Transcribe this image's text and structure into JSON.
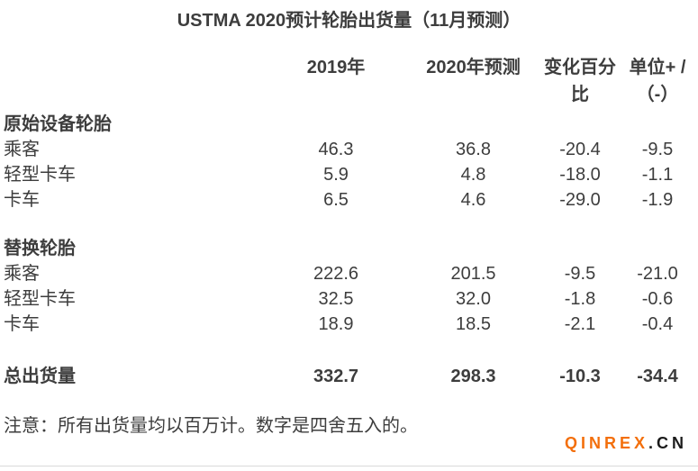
{
  "chart_data": {
    "type": "table",
    "title": "USTMA 2020预计轮胎出货量（11月预测）",
    "columns": [
      "",
      "2019年",
      "2020年预测",
      "变化百分比",
      "单位+/（-）"
    ],
    "header": {
      "y2019": {
        "line1": "2019年",
        "line2": ""
      },
      "y2020": {
        "line1": "2020年预测",
        "line2": ""
      },
      "pct": {
        "line1": "变化百分",
        "line2": "比"
      },
      "unit": {
        "line1": "单位+ /",
        "line2": "（-）"
      }
    },
    "sections": [
      {
        "name": "原始设备轮胎",
        "rows": [
          {
            "label": "乘客",
            "y2019": "46.3",
            "y2020": "36.8",
            "pct": "-20.4",
            "unit": "-9.5"
          },
          {
            "label": "轻型卡车",
            "y2019": "5.9",
            "y2020": "4.8",
            "pct": "-18.0",
            "unit": "-1.1"
          },
          {
            "label": "卡车",
            "y2019": "6.5",
            "y2020": "4.6",
            "pct": "-29.0",
            "unit": "-1.9"
          }
        ]
      },
      {
        "name": "替换轮胎",
        "rows": [
          {
            "label": "乘客",
            "y2019": "222.6",
            "y2020": "201.5",
            "pct": "-9.5",
            "unit": "-21.0"
          },
          {
            "label": "轻型卡车",
            "y2019": "32.5",
            "y2020": "32.0",
            "pct": "-1.8",
            "unit": "-0.6"
          },
          {
            "label": "卡车",
            "y2019": "18.9",
            "y2020": "18.5",
            "pct": "-2.1",
            "unit": "-0.4"
          }
        ]
      }
    ],
    "total": {
      "label": "总出货量",
      "y2019": "332.7",
      "y2020": "298.3",
      "pct": "-10.3",
      "unit": "-34.4"
    },
    "note": "注意：所有出货量均以百万计。数字是四舍五入的。"
  },
  "logo": {
    "name": "QINREX",
    "tld": ".CN"
  },
  "colors": {
    "text": "#3d3d3d",
    "logo_orange": "#f36f0c",
    "logo_dark": "#1b1b1b",
    "divider": "#d9d9d9"
  }
}
